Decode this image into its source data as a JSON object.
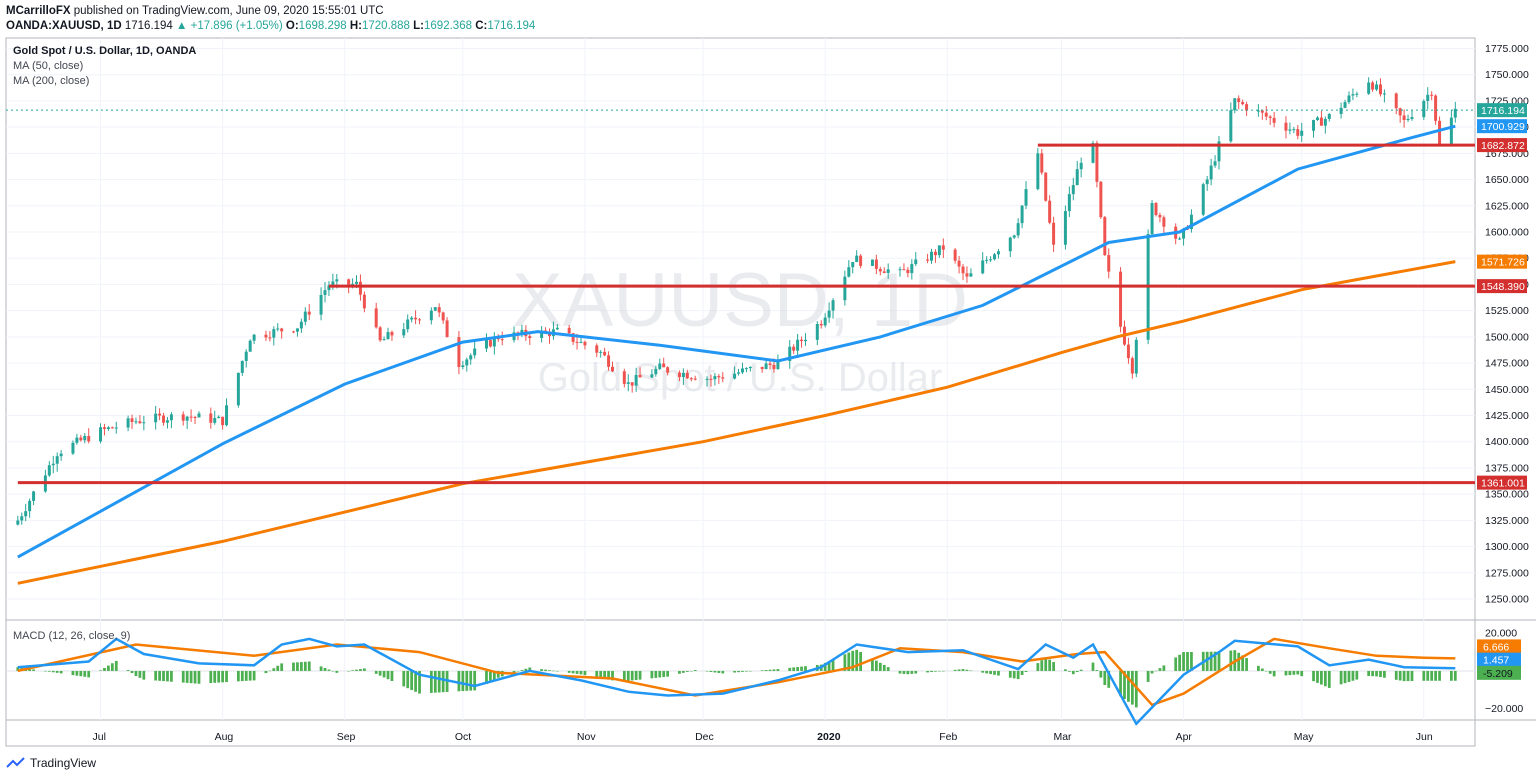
{
  "header": {
    "line1": {
      "author": "MCarrilloFX",
      "rest": " published on TradingView.com, June 09, 2020 15:55:01 UTC"
    },
    "line2": {
      "symbol": "OANDA:XAUUSD, 1D",
      "last": "1716.194",
      "change": "▲ +17.896 (+1.05%)",
      "o_label": "O:",
      "o": "1698.298",
      "h_label": "H:",
      "h": "1720.888",
      "l_label": "L:",
      "l": "1692.368",
      "c_label": "C:",
      "c": "1716.194"
    }
  },
  "legend": {
    "title": "Gold Spot / U.S. Dollar, 1D, OANDA",
    "ma50": "MA (50, close)",
    "ma200": "MA (200, close)",
    "macd": "MACD (12, 26, close, 9)"
  },
  "watermark": {
    "symbol": "XAUUSD, 1D",
    "name": "Gold Spot / U.S. Dollar"
  },
  "footer": {
    "brand": "TradingView"
  },
  "colors": {
    "up": "#26a69a",
    "down": "#ef5350",
    "ma50": "#2196f3",
    "ma200": "#f57c00",
    "level": "#d32f2f",
    "hist": "#4caf50"
  },
  "chart_data": [
    {
      "type": "candlestick",
      "title": "Gold Spot / U.S. Dollar, 1D, OANDA",
      "ylim": [
        1230,
        1785
      ],
      "y_ticks": [
        1250,
        1275,
        1300,
        1325,
        1350,
        1375,
        1400,
        1425,
        1450,
        1475,
        1500,
        1525,
        1550,
        1575,
        1600,
        1625,
        1650,
        1675,
        1700,
        1725,
        1750,
        1775
      ],
      "x_labels": [
        "Jul",
        "Aug",
        "Sep",
        "Oct",
        "Nov",
        "Dec",
        "2020",
        "Feb",
        "Mar",
        "Apr",
        "May",
        "Jun"
      ],
      "ohlc_anchor_closes": [
        [
          "2019-06-10",
          1325
        ],
        [
          "2019-06-20",
          1390
        ],
        [
          "2019-07-01",
          1410
        ],
        [
          "2019-07-10",
          1420
        ],
        [
          "2019-07-22",
          1425
        ],
        [
          "2019-08-01",
          1420
        ],
        [
          "2019-08-08",
          1500
        ],
        [
          "2019-08-20",
          1510
        ],
        [
          "2019-08-28",
          1550
        ],
        [
          "2019-09-04",
          1550
        ],
        [
          "2019-09-10",
          1495
        ],
        [
          "2019-09-24",
          1530
        ],
        [
          "2019-09-30",
          1475
        ],
        [
          "2019-10-10",
          1500
        ],
        [
          "2019-10-25",
          1505
        ],
        [
          "2019-11-05",
          1485
        ],
        [
          "2019-11-12",
          1455
        ],
        [
          "2019-11-20",
          1470
        ],
        [
          "2019-12-03",
          1460
        ],
        [
          "2019-12-20",
          1475
        ],
        [
          "2019-12-31",
          1515
        ],
        [
          "2020-01-08",
          1575
        ],
        [
          "2020-01-20",
          1560
        ],
        [
          "2020-01-31",
          1585
        ],
        [
          "2020-02-06",
          1555
        ],
        [
          "2020-02-18",
          1600
        ],
        [
          "2020-02-24",
          1675
        ],
        [
          "2020-02-28",
          1585
        ],
        [
          "2020-03-06",
          1670
        ],
        [
          "2020-03-09",
          1680
        ],
        [
          "2020-03-12",
          1575
        ],
        [
          "2020-03-16",
          1510
        ],
        [
          "2020-03-19",
          1470
        ],
        [
          "2020-03-24",
          1625
        ],
        [
          "2020-03-31",
          1590
        ],
        [
          "2020-04-07",
          1650
        ],
        [
          "2020-04-14",
          1725
        ],
        [
          "2020-04-22",
          1710
        ],
        [
          "2020-04-30",
          1695
        ],
        [
          "2020-05-08",
          1710
        ],
        [
          "2020-05-18",
          1745
        ],
        [
          "2020-05-27",
          1705
        ],
        [
          "2020-06-03",
          1735
        ],
        [
          "2020-06-05",
          1682
        ],
        [
          "2020-06-09",
          1716.194
        ]
      ],
      "ma50": [
        [
          "2019-06-10",
          1290
        ],
        [
          "2019-08-01",
          1398
        ],
        [
          "2019-09-01",
          1455
        ],
        [
          "2019-10-01",
          1495
        ],
        [
          "2019-10-20",
          1505
        ],
        [
          "2019-11-20",
          1492
        ],
        [
          "2019-12-20",
          1477
        ],
        [
          "2020-01-15",
          1500
        ],
        [
          "2020-02-10",
          1530
        ],
        [
          "2020-03-13",
          1590
        ],
        [
          "2020-03-31",
          1600
        ],
        [
          "2020-04-30",
          1660
        ],
        [
          "2020-05-29",
          1690
        ],
        [
          "2020-06-09",
          1700.929
        ]
      ],
      "ma200": [
        [
          "2019-06-10",
          1265
        ],
        [
          "2019-08-01",
          1305
        ],
        [
          "2019-10-01",
          1360
        ],
        [
          "2019-12-01",
          1400
        ],
        [
          "2020-01-01",
          1425
        ],
        [
          "2020-02-01",
          1452
        ],
        [
          "2020-03-01",
          1485
        ],
        [
          "2020-03-15",
          1500
        ],
        [
          "2020-04-01",
          1515
        ],
        [
          "2020-05-01",
          1545
        ],
        [
          "2020-06-09",
          1571.726
        ]
      ],
      "levels": [
        {
          "value": 1682.872,
          "label": "1682.872",
          "from": "2020-02-24"
        },
        {
          "value": 1548.39,
          "label": "1548.390",
          "from": "2019-08-28"
        },
        {
          "value": 1361.001,
          "label": "1361.001",
          "from": "2019-06-10"
        }
      ],
      "price_labels": [
        {
          "value": 1716.194,
          "label": "1716.194",
          "kind": "last"
        },
        {
          "value": 1700.929,
          "label": "1700.929",
          "kind": "ma50"
        },
        {
          "value": 1682.872,
          "label": "1682.872",
          "kind": "level"
        },
        {
          "value": 1571.726,
          "label": "1571.726",
          "kind": "ma200"
        },
        {
          "value": 1548.39,
          "label": "1548.390",
          "kind": "level"
        },
        {
          "value": 1361.001,
          "label": "1361.001",
          "kind": "level"
        }
      ]
    },
    {
      "type": "line",
      "title": "MACD (12, 26, close, 9)",
      "ylim": [
        -26,
        27
      ],
      "y_ticks": [
        20,
        -20
      ],
      "tick_labels": [
        "20.000",
        "−20.000"
      ],
      "macd": [
        [
          "2019-06-10",
          2
        ],
        [
          "2019-06-28",
          5
        ],
        [
          "2019-07-05",
          17
        ],
        [
          "2019-07-12",
          9
        ],
        [
          "2019-07-26",
          4
        ],
        [
          "2019-08-09",
          3
        ],
        [
          "2019-08-16",
          14
        ],
        [
          "2019-08-23",
          17
        ],
        [
          "2019-08-30",
          13
        ],
        [
          "2019-09-06",
          14
        ],
        [
          "2019-09-20",
          -2
        ],
        [
          "2019-10-04",
          -8
        ],
        [
          "2019-10-18",
          0
        ],
        [
          "2019-10-31",
          -5
        ],
        [
          "2019-11-12",
          -11
        ],
        [
          "2019-11-22",
          -13
        ],
        [
          "2019-12-06",
          -12
        ],
        [
          "2019-12-20",
          -5
        ],
        [
          "2019-12-31",
          2
        ],
        [
          "2020-01-09",
          14
        ],
        [
          "2020-01-22",
          10
        ],
        [
          "2020-02-05",
          11
        ],
        [
          "2020-02-19",
          1
        ],
        [
          "2020-02-26",
          14
        ],
        [
          "2020-03-04",
          7
        ],
        [
          "2020-03-09",
          14
        ],
        [
          "2020-03-20",
          -28
        ],
        [
          "2020-04-01",
          -2
        ],
        [
          "2020-04-10",
          10
        ],
        [
          "2020-04-14",
          16
        ],
        [
          "2020-04-30",
          13
        ],
        [
          "2020-05-08",
          3
        ],
        [
          "2020-05-18",
          6
        ],
        [
          "2020-05-27",
          2
        ],
        [
          "2020-06-09",
          1.457
        ]
      ],
      "signal": [
        [
          "2019-06-10",
          0
        ],
        [
          "2019-07-10",
          14
        ],
        [
          "2019-08-09",
          8
        ],
        [
          "2019-08-30",
          14
        ],
        [
          "2019-09-20",
          10
        ],
        [
          "2019-10-10",
          -1
        ],
        [
          "2019-11-08",
          -4
        ],
        [
          "2019-11-29",
          -13
        ],
        [
          "2019-12-20",
          -6
        ],
        [
          "2020-01-08",
          2
        ],
        [
          "2020-01-20",
          12
        ],
        [
          "2020-02-05",
          10
        ],
        [
          "2020-02-20",
          5
        ],
        [
          "2020-03-05",
          9
        ],
        [
          "2020-03-12",
          10
        ],
        [
          "2020-03-24",
          -18
        ],
        [
          "2020-04-01",
          -12
        ],
        [
          "2020-04-14",
          5
        ],
        [
          "2020-04-24",
          17
        ],
        [
          "2020-05-08",
          12
        ],
        [
          "2020-05-20",
          8
        ],
        [
          "2020-06-01",
          7
        ],
        [
          "2020-06-09",
          6.666
        ]
      ],
      "price_labels": [
        {
          "value": 6.666,
          "label": "6.666",
          "kind": "signal"
        },
        {
          "value": 1.457,
          "label": "1.457",
          "kind": "macd"
        },
        {
          "value": -5.209,
          "label": "-5.209",
          "kind": "hist"
        }
      ]
    }
  ]
}
